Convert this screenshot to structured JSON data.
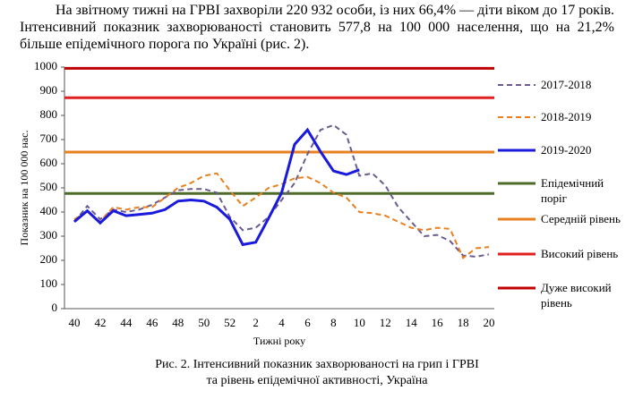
{
  "text": "На звітному тижні на ГРВІ захворіли 220 932 особи, із них 66,4% — діти віком до 17 років. Інтенсивний показник захворюваності становить 577,8 на 100 000 населення, що на 21,2% більше епідемічного порога по Україні (рис. 2).",
  "chart_data": {
    "type": "line",
    "categories": [
      "40",
      null,
      "42",
      null,
      "44",
      null,
      "46",
      null,
      "48",
      null,
      "50",
      null,
      "52",
      null,
      "2",
      null,
      "4",
      null,
      "6",
      null,
      "8",
      null,
      "10",
      null,
      "12",
      null,
      "14",
      null,
      "16",
      null,
      "18",
      null,
      "20"
    ],
    "ylim": [
      0,
      1000
    ],
    "yticks": [
      0,
      100,
      200,
      300,
      400,
      500,
      600,
      700,
      800,
      900,
      1000
    ],
    "ylabel": "Показник на 100 000 нас.",
    "xlabel": "Тижні року",
    "series": [
      {
        "name": "2017-2018",
        "color": "#6b5b8e",
        "dash": true,
        "values": [
          360,
          425,
          370,
          410,
          400,
          410,
          430,
          460,
          490,
          495,
          495,
          480,
          380,
          325,
          335,
          380,
          450,
          520,
          640,
          740,
          760,
          720,
          550,
          560,
          510,
          420,
          360,
          300,
          305,
          280,
          220,
          215,
          225
        ]
      },
      {
        "name": "2018-2019",
        "color": "#e8801f",
        "dash": true,
        "values": [
          370,
          400,
          360,
          420,
          410,
          420,
          420,
          460,
          500,
          520,
          550,
          560,
          490,
          425,
          460,
          500,
          515,
          540,
          545,
          520,
          480,
          460,
          400,
          395,
          385,
          360,
          335,
          325,
          335,
          330,
          210,
          250,
          255
        ]
      },
      {
        "name": "2019-2020",
        "color": "#1a1adc",
        "dash": false,
        "values": [
          360,
          405,
          355,
          405,
          385,
          390,
          395,
          410,
          445,
          450,
          445,
          420,
          370,
          265,
          275,
          375,
          480,
          680,
          740,
          650,
          570,
          555,
          575,
          null,
          null,
          null,
          null,
          null,
          null,
          null,
          null,
          null,
          null
        ]
      }
    ],
    "levels": [
      {
        "name": "Епідемічний поріг",
        "color": "#4e6b2a",
        "value": 477
      },
      {
        "name": "Середній рівень",
        "color": "#e8801f",
        "value": 648
      },
      {
        "name": "Високий рівень",
        "color": "#e02020",
        "value": 873
      },
      {
        "name": "Дуже високий рівень",
        "color": "#c00000",
        "value": 995
      }
    ]
  },
  "caption": [
    "Рис. 2. Інтенсивний показник захворюваності на грип і ГРВІ",
    "та рівень епідемічної активності, Україна"
  ]
}
